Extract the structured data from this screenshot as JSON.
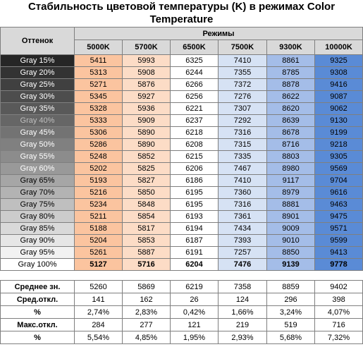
{
  "title_line1": "Стабильность цветовой температуры (K) в режимах Color",
  "title_line2": "Temperature",
  "headers": {
    "shade": "Оттенок",
    "modes": "Режимы",
    "columns": [
      "5000K",
      "5700K",
      "6500K",
      "7500K",
      "9300K",
      "10000K"
    ]
  },
  "column_colors": [
    "#fbc49f",
    "#fcdcc6",
    "#ffffff",
    "#d6e2f4",
    "#a4bde8",
    "#5a8bd6"
  ],
  "rows": [
    {
      "label": "Gray 15%",
      "bg": "#262626",
      "fg": "#ffffff",
      "values": [
        5411,
        5993,
        6325,
        7410,
        8861,
        9325
      ]
    },
    {
      "label": "Gray 20%",
      "bg": "#333333",
      "fg": "#ffffff",
      "values": [
        5313,
        5908,
        6244,
        7355,
        8785,
        9308
      ]
    },
    {
      "label": "Gray 25%",
      "bg": "#404040",
      "fg": "#ffffff",
      "values": [
        5271,
        5876,
        6266,
        7372,
        8878,
        9416
      ]
    },
    {
      "label": "Gray 30%",
      "bg": "#4d4d4d",
      "fg": "#ffffff",
      "values": [
        5345,
        5927,
        6256,
        7276,
        8622,
        9087
      ]
    },
    {
      "label": "Gray 35%",
      "bg": "#595959",
      "fg": "#ffffff",
      "values": [
        5328,
        5936,
        6221,
        7307,
        8620,
        9062
      ]
    },
    {
      "label": "Gray 40%",
      "bg": "#666666",
      "fg": "#bfbfbf",
      "values": [
        5333,
        5909,
        6237,
        7292,
        8639,
        9130
      ]
    },
    {
      "label": "Gray 45%",
      "bg": "#737373",
      "fg": "#ffffff",
      "values": [
        5306,
        5890,
        6218,
        7316,
        8678,
        9199
      ]
    },
    {
      "label": "Gray 50%",
      "bg": "#808080",
      "fg": "#ffffff",
      "values": [
        5286,
        5890,
        6208,
        7315,
        8716,
        9218
      ]
    },
    {
      "label": "Gray 55%",
      "bg": "#8c8c8c",
      "fg": "#ffffff",
      "values": [
        5248,
        5852,
        6215,
        7335,
        8803,
        9305
      ]
    },
    {
      "label": "Gray 60%",
      "bg": "#999999",
      "fg": "#ffffff",
      "values": [
        5202,
        5825,
        6206,
        7467,
        8980,
        9569
      ]
    },
    {
      "label": "Gray 65%",
      "bg": "#a6a6a6",
      "fg": "#000000",
      "values": [
        5193,
        5827,
        6186,
        7410,
        9117,
        9704
      ]
    },
    {
      "label": "Gray 70%",
      "bg": "#b3b3b3",
      "fg": "#000000",
      "values": [
        5216,
        5850,
        6195,
        7360,
        8979,
        9616
      ]
    },
    {
      "label": "Gray 75%",
      "bg": "#bfbfbf",
      "fg": "#000000",
      "values": [
        5234,
        5848,
        6195,
        7316,
        8881,
        9463
      ]
    },
    {
      "label": "Gray 80%",
      "bg": "#cccccc",
      "fg": "#000000",
      "values": [
        5211,
        5854,
        6193,
        7361,
        8901,
        9475
      ]
    },
    {
      "label": "Gray 85%",
      "bg": "#d9d9d9",
      "fg": "#000000",
      "values": [
        5188,
        5817,
        6194,
        7434,
        9009,
        9571
      ]
    },
    {
      "label": "Gray 90%",
      "bg": "#e6e6e6",
      "fg": "#000000",
      "values": [
        5204,
        5853,
        6187,
        7393,
        9010,
        9599
      ]
    },
    {
      "label": "Gray 95%",
      "bg": "#f2f2f2",
      "fg": "#000000",
      "values": [
        5261,
        5887,
        6191,
        7257,
        8850,
        9413
      ]
    },
    {
      "label": "Gray 100%",
      "bg": "#ffffff",
      "fg": "#000000",
      "values": [
        5127,
        5716,
        6204,
        7476,
        9139,
        9778
      ],
      "bold": true
    }
  ],
  "stats": [
    {
      "label": "Среднее зн.",
      "values": [
        "5260",
        "5869",
        "6219",
        "7358",
        "8859",
        "9402"
      ]
    },
    {
      "label": "Сред.откл.",
      "values": [
        "141",
        "162",
        "26",
        "124",
        "296",
        "398"
      ]
    },
    {
      "label": "%",
      "values": [
        "2,74%",
        "2,83%",
        "0,42%",
        "1,66%",
        "3,24%",
        "4,07%"
      ]
    },
    {
      "label": "Макс.откл.",
      "values": [
        "284",
        "277",
        "121",
        "219",
        "519",
        "716"
      ]
    },
    {
      "label": "%",
      "values": [
        "5,54%",
        "4,85%",
        "1,95%",
        "2,93%",
        "5,68%",
        "7,32%"
      ]
    }
  ]
}
